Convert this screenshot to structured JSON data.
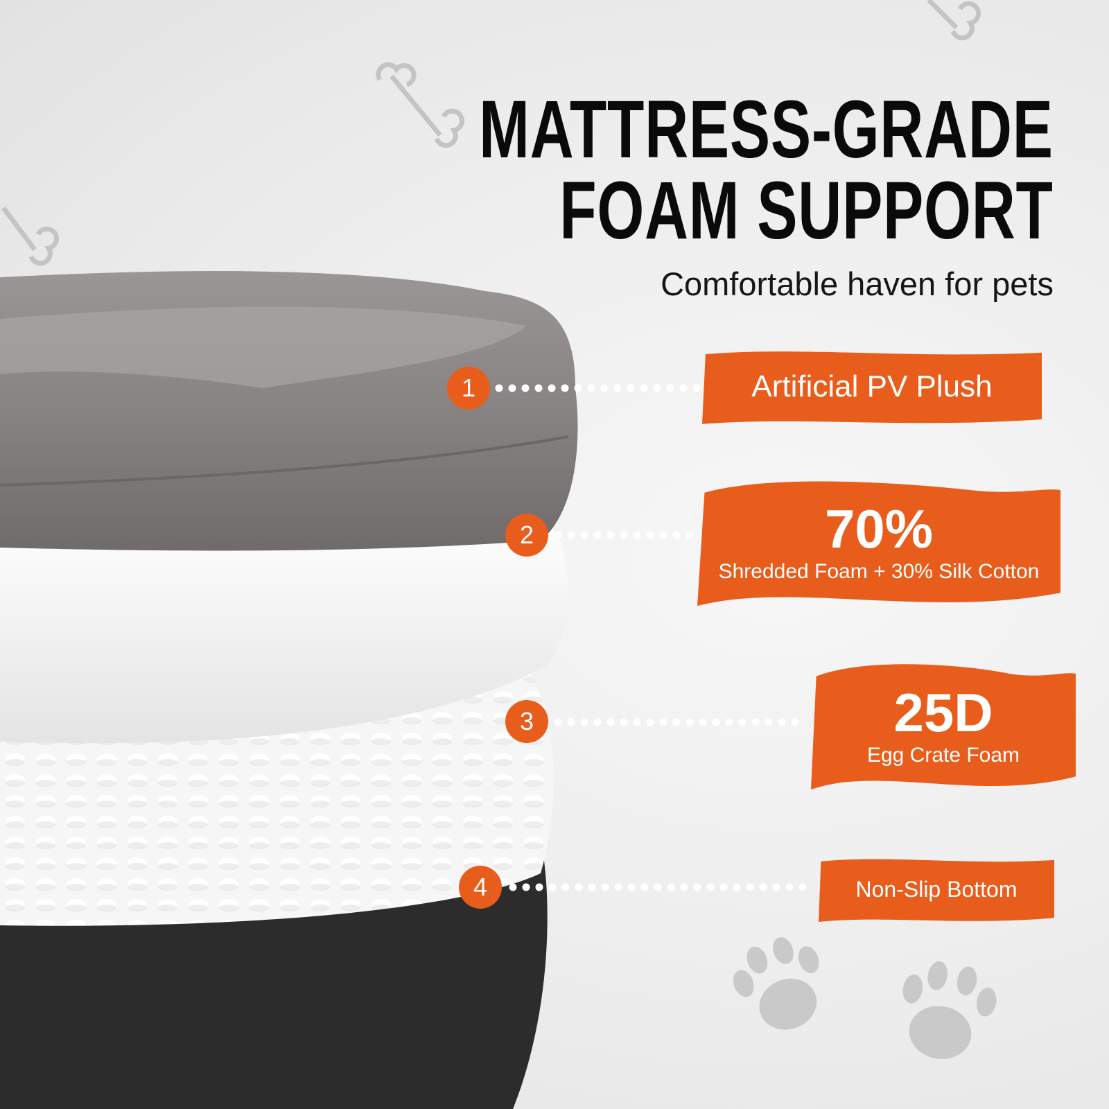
{
  "heading": {
    "line1": "MATTRESS-GRADE",
    "line2": "FOAM SUPPORT"
  },
  "subtitle": "Comfortable haven for pets",
  "accent_color": "#e85d1c",
  "layers": [
    {
      "number": "1",
      "label": "Artificial PV Plush"
    },
    {
      "number": "2",
      "value": "70%",
      "label": "Shredded Foam + 30% Silk Cotton"
    },
    {
      "number": "3",
      "value": "25D",
      "label": "Egg Crate Foam"
    },
    {
      "number": "4",
      "label": "Non-Slip Bottom"
    }
  ],
  "decorations": [
    "bone-icon",
    "paw-print-icon"
  ]
}
